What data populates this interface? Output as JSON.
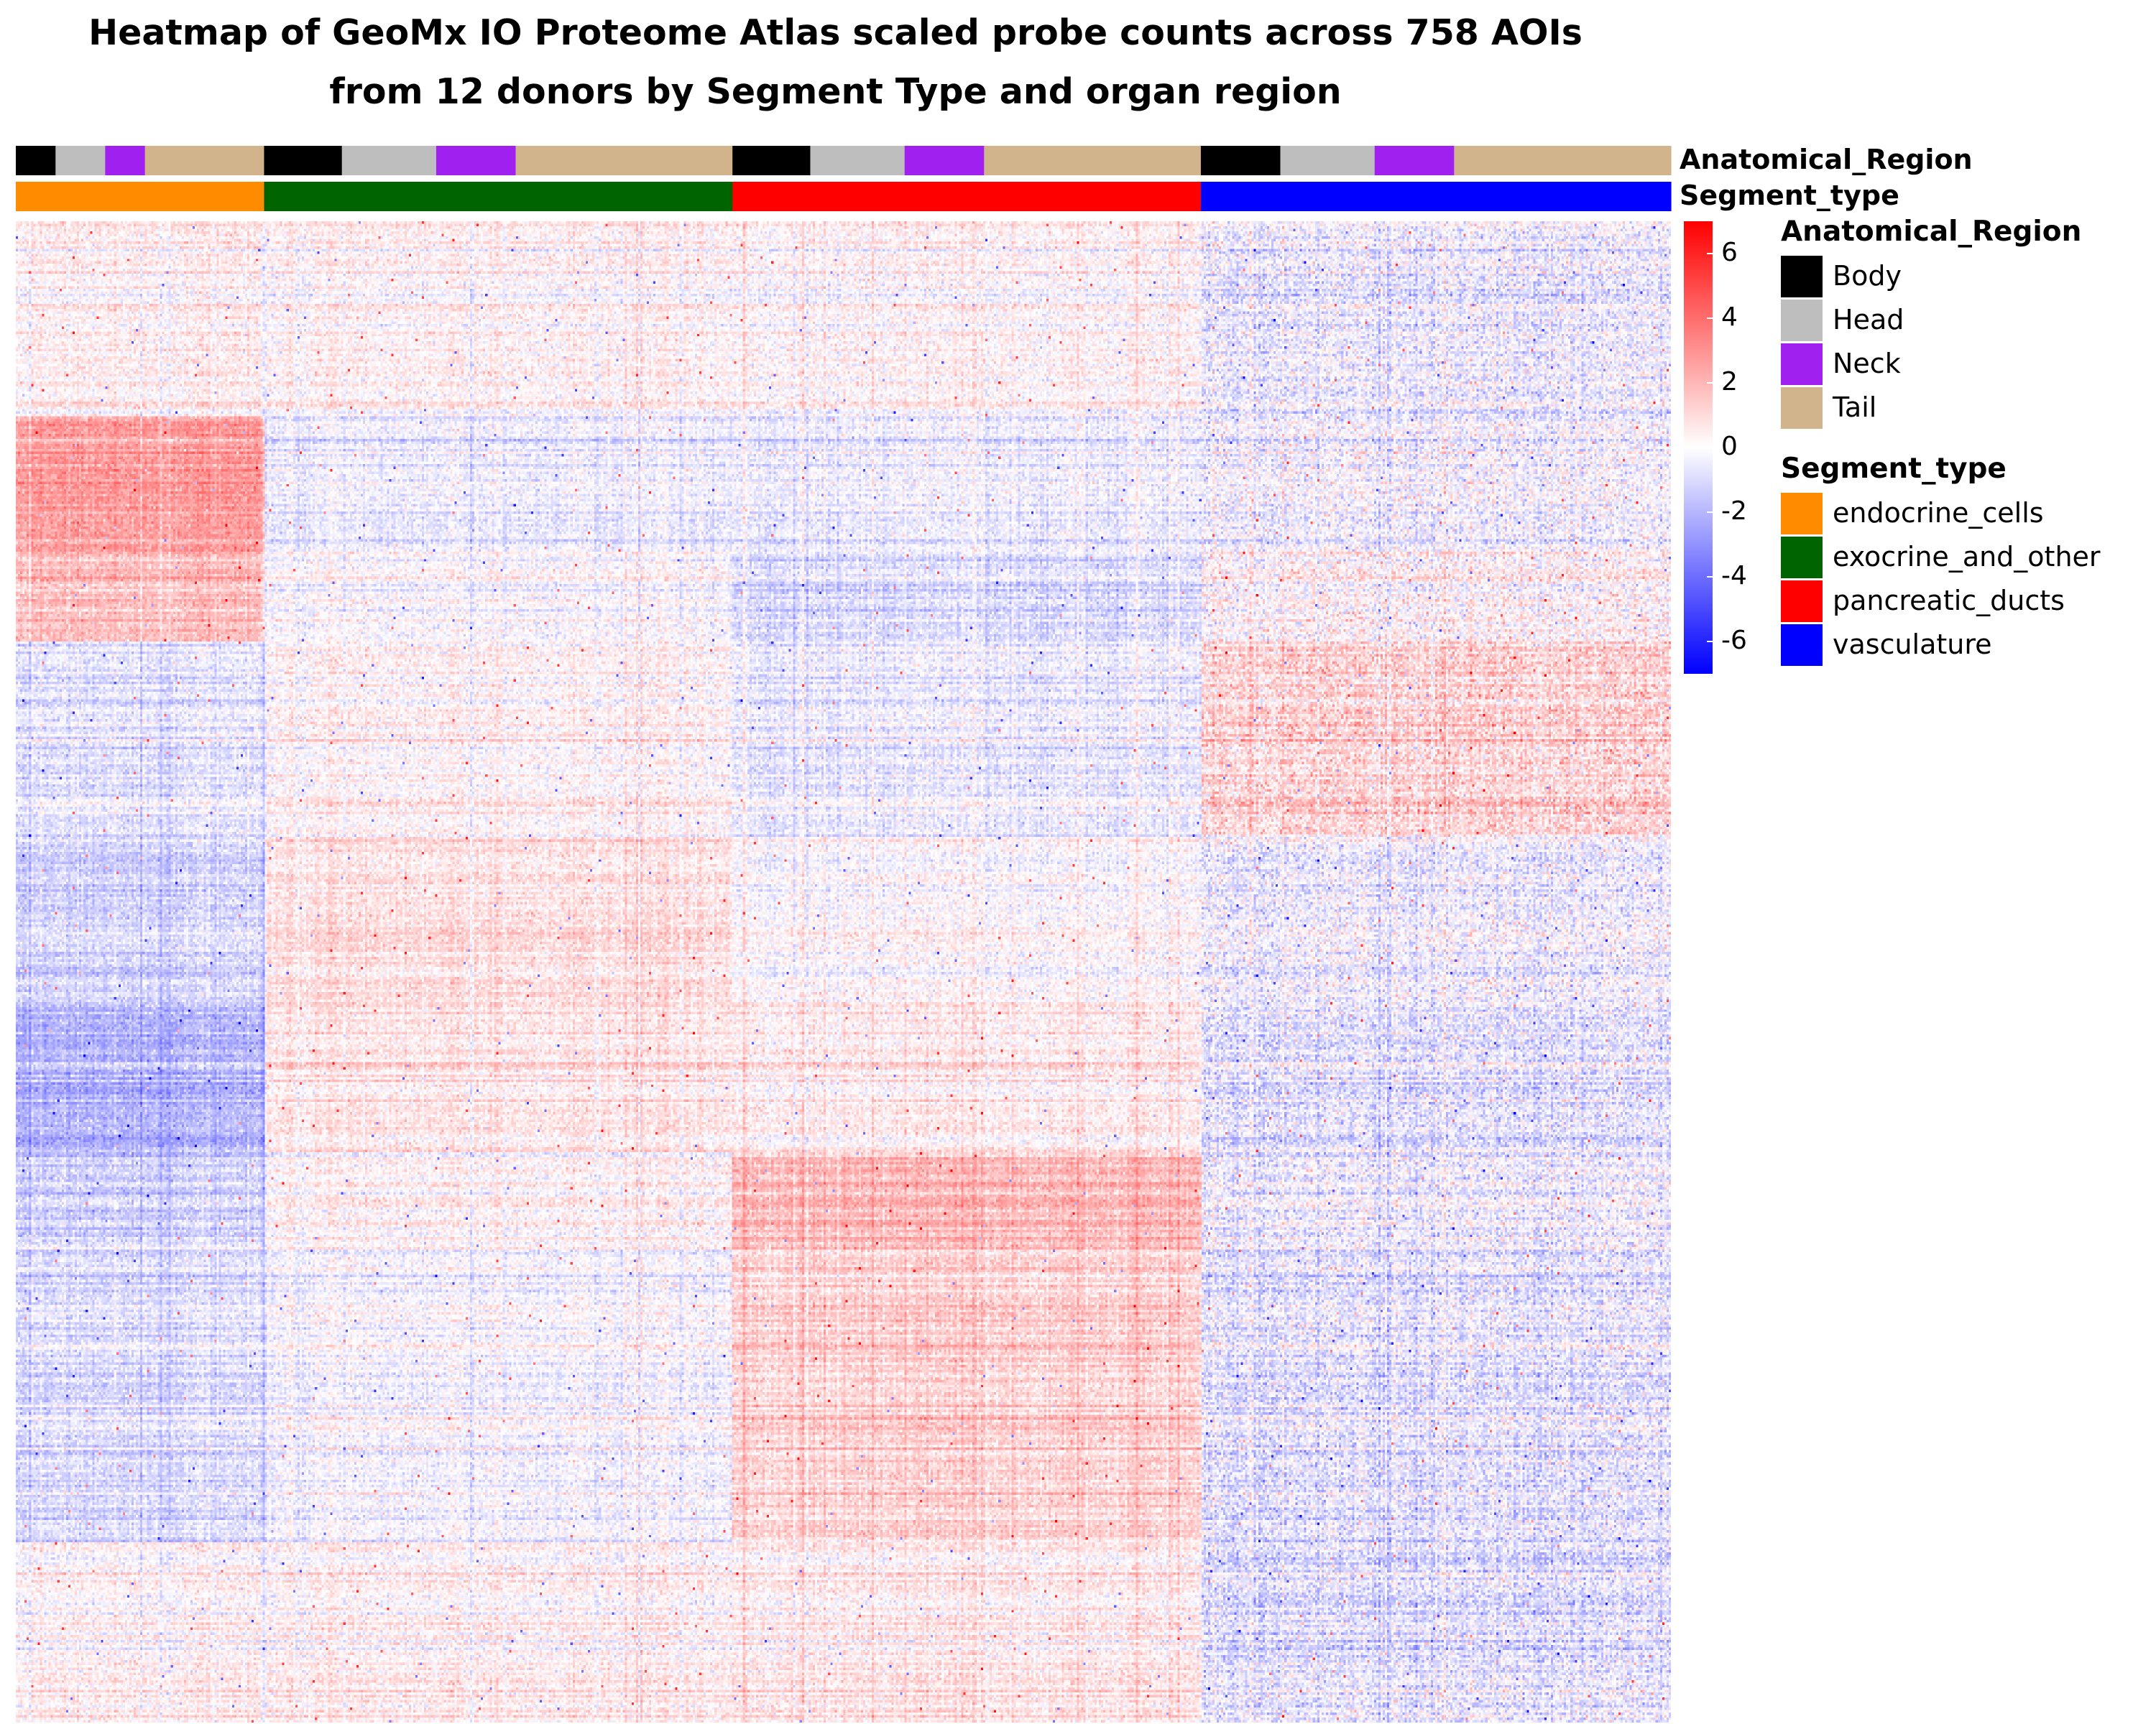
{
  "chart_data": {
    "type": "heatmap",
    "title_lines": [
      "Heatmap of GeoMx IO Proteome Atlas scaled probe counts across 758 AOIs",
      "from 12 donors by Segment Type and organ region"
    ],
    "color_scale": {
      "min": -7,
      "max": 7,
      "ticks": [
        6,
        4,
        2,
        0,
        -2,
        -4,
        -6
      ],
      "tick_labels": [
        "6",
        "4",
        "2",
        "0",
        "-2",
        "-4",
        "-6"
      ],
      "low_color": "#0000ff",
      "mid_color": "#ffffff",
      "high_color": "#ff0000"
    },
    "annotation_tracks": [
      {
        "name": "Anatomical_Region",
        "segments": [
          {
            "level": "Body",
            "fraction": 0.024
          },
          {
            "level": "Head",
            "fraction": 0.03
          },
          {
            "level": "Neck",
            "fraction": 0.024
          },
          {
            "level": "Tail",
            "fraction": 0.072
          },
          {
            "level": "Body",
            "fraction": 0.047
          },
          {
            "level": "Head",
            "fraction": 0.057
          },
          {
            "level": "Neck",
            "fraction": 0.048
          },
          {
            "level": "Tail",
            "fraction": 0.131
          },
          {
            "level": "Body",
            "fraction": 0.047
          },
          {
            "level": "Head",
            "fraction": 0.057
          },
          {
            "level": "Neck",
            "fraction": 0.048
          },
          {
            "level": "Tail",
            "fraction": 0.131
          },
          {
            "level": "Body",
            "fraction": 0.048
          },
          {
            "level": "Head",
            "fraction": 0.057
          },
          {
            "level": "Neck",
            "fraction": 0.048
          },
          {
            "level": "Tail",
            "fraction": 0.131
          }
        ]
      },
      {
        "name": "Segment_type",
        "segments": [
          {
            "level": "endocrine_cells",
            "fraction": 0.15
          },
          {
            "level": "exocrine_and_other",
            "fraction": 0.283
          },
          {
            "level": "pancreatic_ducts",
            "fraction": 0.283
          },
          {
            "level": "vasculature",
            "fraction": 0.284
          }
        ]
      }
    ],
    "legends": [
      {
        "title": "Anatomical_Region",
        "entries": [
          {
            "label": "Body",
            "color": "#000000"
          },
          {
            "label": "Head",
            "color": "#bebebe"
          },
          {
            "label": "Neck",
            "color": "#a020f0"
          },
          {
            "label": "Tail",
            "color": "#d2b48c"
          }
        ]
      },
      {
        "title": "Segment_type",
        "entries": [
          {
            "label": "endocrine_cells",
            "color": "#ff8c00"
          },
          {
            "label": "exocrine_and_other",
            "color": "#006400"
          },
          {
            "label": "pancreatic_ducts",
            "color": "#ff0000"
          },
          {
            "label": "vasculature",
            "color": "#0000ff"
          }
        ]
      }
    ],
    "row_blocks": [
      {
        "fraction": 0.13,
        "means": [
          0.2,
          0.1,
          0.0,
          -0.8
        ]
      },
      {
        "fraction": 0.09,
        "means": [
          3.0,
          -0.5,
          -0.5,
          -0.3
        ]
      },
      {
        "fraction": 0.06,
        "means": [
          2.0,
          0.0,
          -1.0,
          0.3
        ]
      },
      {
        "fraction": 0.13,
        "means": [
          -0.8,
          0.3,
          -0.6,
          1.3
        ]
      },
      {
        "fraction": 0.11,
        "means": [
          -1.3,
          0.9,
          0.0,
          -0.5
        ]
      },
      {
        "fraction": 0.1,
        "means": [
          -2.2,
          0.8,
          0.6,
          -0.8
        ]
      },
      {
        "fraction": 0.06,
        "means": [
          -1.5,
          0.2,
          2.0,
          -0.6
        ]
      },
      {
        "fraction": 0.2,
        "means": [
          -1.0,
          -0.2,
          1.4,
          -0.8
        ]
      },
      {
        "fraction": 0.12,
        "means": [
          0.3,
          0.4,
          0.6,
          -0.9
        ]
      }
    ]
  }
}
